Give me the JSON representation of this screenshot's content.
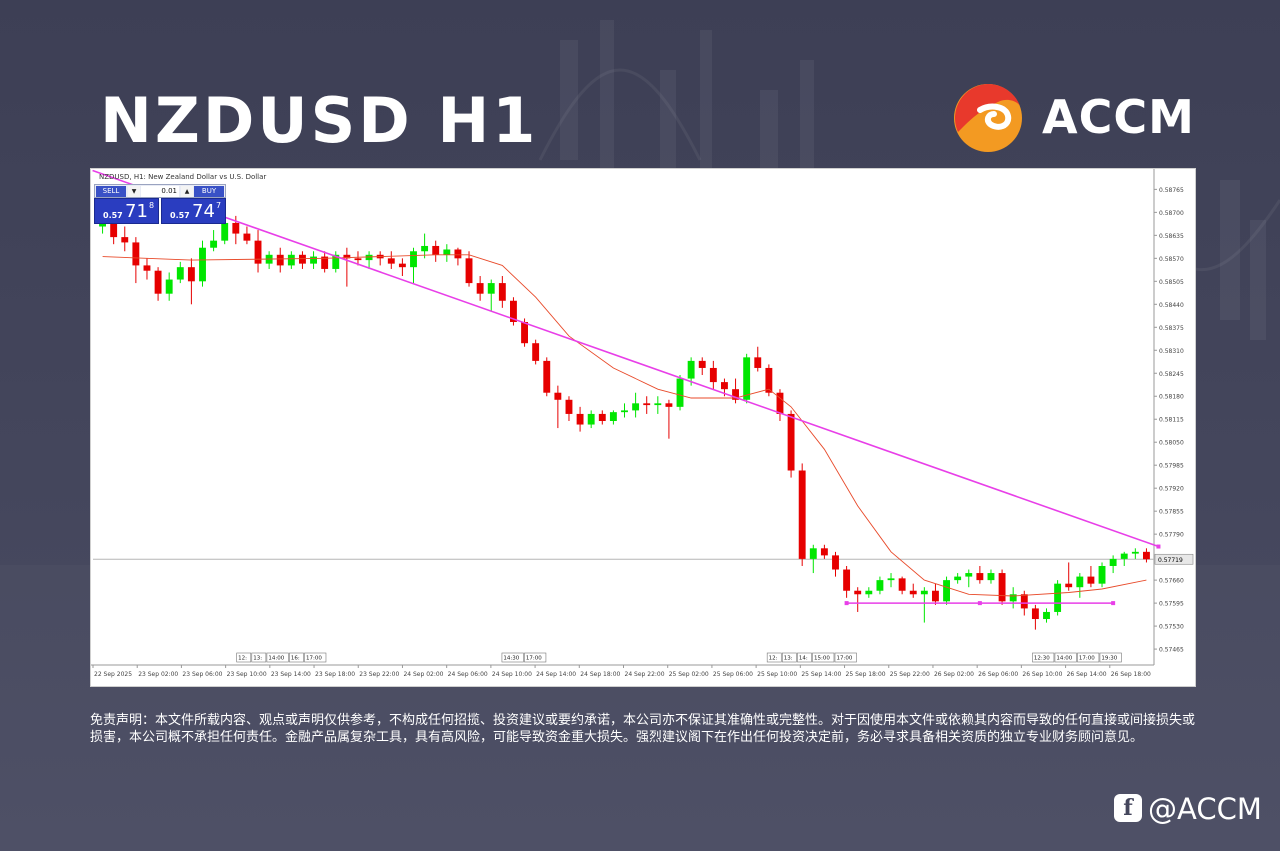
{
  "header": {
    "title": "NZDUSD H1"
  },
  "brand": {
    "logo_text": "ACCM",
    "logo_colors": {
      "red": "#e8392c",
      "orange": "#f39a22",
      "white": "#ffffff"
    }
  },
  "chart_header": {
    "text": "NZDUSD, H1: New Zealand Dollar vs U.S. Dollar"
  },
  "trade_panel": {
    "sell_label": "SELL",
    "buy_label": "BUY",
    "volume": "0.01",
    "sell_prefix": "0.57",
    "sell_big": "71",
    "sell_sup": "8",
    "buy_prefix": "0.57",
    "buy_big": "74",
    "buy_sup": "7"
  },
  "chart_data": {
    "type": "candlestick",
    "timeframe": "H1",
    "ylim": [
      0.5742,
      0.588
    ],
    "y_ticks": [
      "0.58765",
      "0.58700",
      "0.58635",
      "0.58570",
      "0.58505",
      "0.58440",
      "0.58375",
      "0.58310",
      "0.58245",
      "0.58180",
      "0.58115",
      "0.58050",
      "0.57985",
      "0.57920",
      "0.57855",
      "0.57790",
      "0.57719",
      "0.57660",
      "0.57595",
      "0.57530",
      "0.57465"
    ],
    "current_price": "0.57719",
    "x_tick_labels": [
      "22 Sep 2025",
      "23 Sep 02:00",
      "23 Sep 06:00",
      "23 Sep 10:00",
      "23 Sep 14:00",
      "23 Sep 18:00",
      "23 Sep 22:00",
      "24 Sep 02:00",
      "24 Sep 06:00",
      "24 Sep 10:00",
      "24 Sep 14:00",
      "24 Sep 18:00",
      "24 Sep 22:00",
      "25 Sep 02:00",
      "25 Sep 06:00",
      "25 Sep 10:00",
      "25 Sep 14:00",
      "25 Sep 18:00",
      "25 Sep 22:00",
      "26 Sep 02:00",
      "26 Sep 06:00",
      "26 Sep 10:00",
      "26 Sep 14:00",
      "26 Sep 18:00"
    ],
    "session_markers": [
      {
        "after_tick": 3,
        "labels": [
          "12:",
          "13:",
          "14:00",
          "16:",
          "17:00"
        ]
      },
      {
        "after_tick": 9,
        "labels": [
          "14:30",
          "17:00"
        ]
      },
      {
        "after_tick": 15,
        "labels": [
          "12:",
          "13:",
          "14:",
          "15:00",
          "17:00"
        ]
      },
      {
        "after_tick": 21,
        "labels": [
          "12:30",
          "14:00",
          "17:00",
          "19:30"
        ]
      }
    ],
    "colors": {
      "bull": "#00e600",
      "bear": "#e60000",
      "ma": "#e84a2a",
      "trendline": "#e83fe8",
      "price_line": "#b5b5b5"
    },
    "candles": [
      [
        0.5866,
        0.5869,
        0.5864,
        0.58675
      ],
      [
        0.58675,
        0.587,
        0.5861,
        0.5863
      ],
      [
        0.5863,
        0.5866,
        0.5859,
        0.58615
      ],
      [
        0.58615,
        0.5863,
        0.585,
        0.5855
      ],
      [
        0.5855,
        0.5857,
        0.5851,
        0.58535
      ],
      [
        0.58535,
        0.58545,
        0.5845,
        0.5847
      ],
      [
        0.5847,
        0.5853,
        0.5845,
        0.5851
      ],
      [
        0.5851,
        0.5856,
        0.585,
        0.58545
      ],
      [
        0.58545,
        0.5857,
        0.5844,
        0.58505
      ],
      [
        0.58505,
        0.5862,
        0.5849,
        0.586
      ],
      [
        0.586,
        0.5865,
        0.5859,
        0.5862
      ],
      [
        0.5862,
        0.5868,
        0.5861,
        0.5867
      ],
      [
        0.5867,
        0.5869,
        0.5861,
        0.5864
      ],
      [
        0.5864,
        0.5866,
        0.5861,
        0.5862
      ],
      [
        0.5862,
        0.5865,
        0.5853,
        0.58555
      ],
      [
        0.58555,
        0.5859,
        0.5854,
        0.5858
      ],
      [
        0.5858,
        0.586,
        0.5853,
        0.5855
      ],
      [
        0.5855,
        0.5859,
        0.5854,
        0.5858
      ],
      [
        0.5858,
        0.5859,
        0.5854,
        0.58555
      ],
      [
        0.58555,
        0.5859,
        0.5854,
        0.58575
      ],
      [
        0.58575,
        0.5859,
        0.5853,
        0.5854
      ],
      [
        0.5854,
        0.5859,
        0.5853,
        0.5858
      ],
      [
        0.5858,
        0.586,
        0.5849,
        0.5857
      ],
      [
        0.5857,
        0.5859,
        0.5855,
        0.58565
      ],
      [
        0.58565,
        0.5859,
        0.5854,
        0.5858
      ],
      [
        0.5858,
        0.5859,
        0.5855,
        0.5857
      ],
      [
        0.5857,
        0.5859,
        0.5854,
        0.58555
      ],
      [
        0.58555,
        0.5857,
        0.5852,
        0.58545
      ],
      [
        0.58545,
        0.586,
        0.585,
        0.5859
      ],
      [
        0.5859,
        0.5864,
        0.5857,
        0.58605
      ],
      [
        0.58605,
        0.5862,
        0.5856,
        0.5858
      ],
      [
        0.5858,
        0.5861,
        0.5856,
        0.58595
      ],
      [
        0.58595,
        0.586,
        0.5855,
        0.5857
      ],
      [
        0.5857,
        0.5859,
        0.5849,
        0.585
      ],
      [
        0.585,
        0.5852,
        0.5845,
        0.5847
      ],
      [
        0.5847,
        0.5851,
        0.5842,
        0.585
      ],
      [
        0.585,
        0.5852,
        0.5843,
        0.5845
      ],
      [
        0.5845,
        0.5846,
        0.5838,
        0.5839
      ],
      [
        0.5839,
        0.584,
        0.5832,
        0.5833
      ],
      [
        0.5833,
        0.5834,
        0.5827,
        0.5828
      ],
      [
        0.5828,
        0.5829,
        0.5818,
        0.5819
      ],
      [
        0.5819,
        0.5821,
        0.5809,
        0.5817
      ],
      [
        0.5817,
        0.5818,
        0.5811,
        0.5813
      ],
      [
        0.5813,
        0.5815,
        0.5808,
        0.581
      ],
      [
        0.581,
        0.5814,
        0.5809,
        0.5813
      ],
      [
        0.5813,
        0.5814,
        0.581,
        0.5811
      ],
      [
        0.5811,
        0.5814,
        0.581,
        0.58135
      ],
      [
        0.58135,
        0.5816,
        0.5812,
        0.5814
      ],
      [
        0.5814,
        0.5819,
        0.5812,
        0.5816
      ],
      [
        0.5816,
        0.5818,
        0.5813,
        0.58155
      ],
      [
        0.58155,
        0.5818,
        0.5813,
        0.5816
      ],
      [
        0.5816,
        0.5817,
        0.5806,
        0.5815
      ],
      [
        0.5815,
        0.5824,
        0.5814,
        0.5823
      ],
      [
        0.5823,
        0.5829,
        0.5821,
        0.5828
      ],
      [
        0.5828,
        0.5829,
        0.5824,
        0.5826
      ],
      [
        0.5826,
        0.5828,
        0.582,
        0.5822
      ],
      [
        0.5822,
        0.5823,
        0.5818,
        0.582
      ],
      [
        0.582,
        0.5823,
        0.5816,
        0.5817
      ],
      [
        0.5817,
        0.583,
        0.5816,
        0.5829
      ],
      [
        0.5829,
        0.5832,
        0.5825,
        0.5826
      ],
      [
        0.5826,
        0.5827,
        0.5818,
        0.5819
      ],
      [
        0.5819,
        0.582,
        0.5811,
        0.5813
      ],
      [
        0.5813,
        0.5814,
        0.5795,
        0.5797
      ],
      [
        0.5797,
        0.5799,
        0.577,
        0.5772
      ],
      [
        0.5772,
        0.5776,
        0.5768,
        0.5775
      ],
      [
        0.5775,
        0.5776,
        0.5772,
        0.5773
      ],
      [
        0.5773,
        0.5774,
        0.5767,
        0.5769
      ],
      [
        0.5769,
        0.577,
        0.5761,
        0.5763
      ],
      [
        0.5763,
        0.5764,
        0.5757,
        0.5762
      ],
      [
        0.5762,
        0.5764,
        0.5761,
        0.5763
      ],
      [
        0.5763,
        0.5767,
        0.5762,
        0.5766
      ],
      [
        0.5766,
        0.5768,
        0.5764,
        0.57665
      ],
      [
        0.57665,
        0.5767,
        0.5762,
        0.5763
      ],
      [
        0.5763,
        0.5765,
        0.5761,
        0.5762
      ],
      [
        0.5762,
        0.5764,
        0.5754,
        0.5763
      ],
      [
        0.5763,
        0.5765,
        0.5759,
        0.576
      ],
      [
        0.576,
        0.5767,
        0.5759,
        0.5766
      ],
      [
        0.5766,
        0.5768,
        0.5765,
        0.5767
      ],
      [
        0.5767,
        0.5769,
        0.5764,
        0.5768
      ],
      [
        0.5768,
        0.577,
        0.5765,
        0.5766
      ],
      [
        0.5766,
        0.5769,
        0.5765,
        0.5768
      ],
      [
        0.5768,
        0.5769,
        0.5759,
        0.576
      ],
      [
        0.576,
        0.5764,
        0.5758,
        0.5762
      ],
      [
        0.5762,
        0.5763,
        0.5756,
        0.5758
      ],
      [
        0.5758,
        0.5759,
        0.5752,
        0.5755
      ],
      [
        0.5755,
        0.5758,
        0.5754,
        0.5757
      ],
      [
        0.5757,
        0.5766,
        0.5756,
        0.5765
      ],
      [
        0.5765,
        0.5771,
        0.5763,
        0.5764
      ],
      [
        0.5764,
        0.5768,
        0.5761,
        0.5767
      ],
      [
        0.5767,
        0.577,
        0.5764,
        0.5765
      ],
      [
        0.5765,
        0.5771,
        0.5764,
        0.577
      ],
      [
        0.577,
        0.5773,
        0.5768,
        0.5772
      ],
      [
        0.5772,
        0.5774,
        0.577,
        0.57735
      ],
      [
        0.57735,
        0.5775,
        0.5772,
        0.5774
      ],
      [
        0.5774,
        0.5775,
        0.5771,
        0.57719
      ]
    ],
    "moving_average": [
      [
        0,
        0.58575
      ],
      [
        8,
        0.58565
      ],
      [
        20,
        0.5857
      ],
      [
        30,
        0.5858
      ],
      [
        33,
        0.5858
      ],
      [
        36,
        0.5855
      ],
      [
        39,
        0.5846
      ],
      [
        42,
        0.5835
      ],
      [
        46,
        0.5826
      ],
      [
        50,
        0.582
      ],
      [
        53,
        0.58175
      ],
      [
        57,
        0.58175
      ],
      [
        60,
        0.582
      ],
      [
        62,
        0.5815
      ],
      [
        65,
        0.5803
      ],
      [
        68,
        0.5787
      ],
      [
        71,
        0.5774
      ],
      [
        74,
        0.5766
      ],
      [
        78,
        0.5762
      ],
      [
        82,
        0.57615
      ],
      [
        87,
        0.57625
      ],
      [
        90,
        0.57635
      ],
      [
        94,
        0.5766
      ]
    ],
    "trendline": {
      "start": [
        0,
        0.5879
      ],
      "end": [
        94,
        0.57755
      ]
    },
    "support_line": {
      "from": 67,
      "to": 91,
      "price": 0.57595
    }
  },
  "disclaimer": {
    "text": "免责声明：本文件所载内容、观点或声明仅供参考，不构成任何招揽、投资建议或要约承诺，本公司亦不保证其准确性或完整性。对于因使用本文件或依赖其内容而导致的任何直接或间接损失或损害，本公司概不承担任何责任。金融产品属复杂工具，具有高风险，可能导致资金重大损失。强烈建议阁下在作出任何投资决定前，务必寻求具备相关资质的独立专业财务顾问意见。"
  },
  "social": {
    "icon": "facebook-icon",
    "handle": "@ACCM"
  }
}
